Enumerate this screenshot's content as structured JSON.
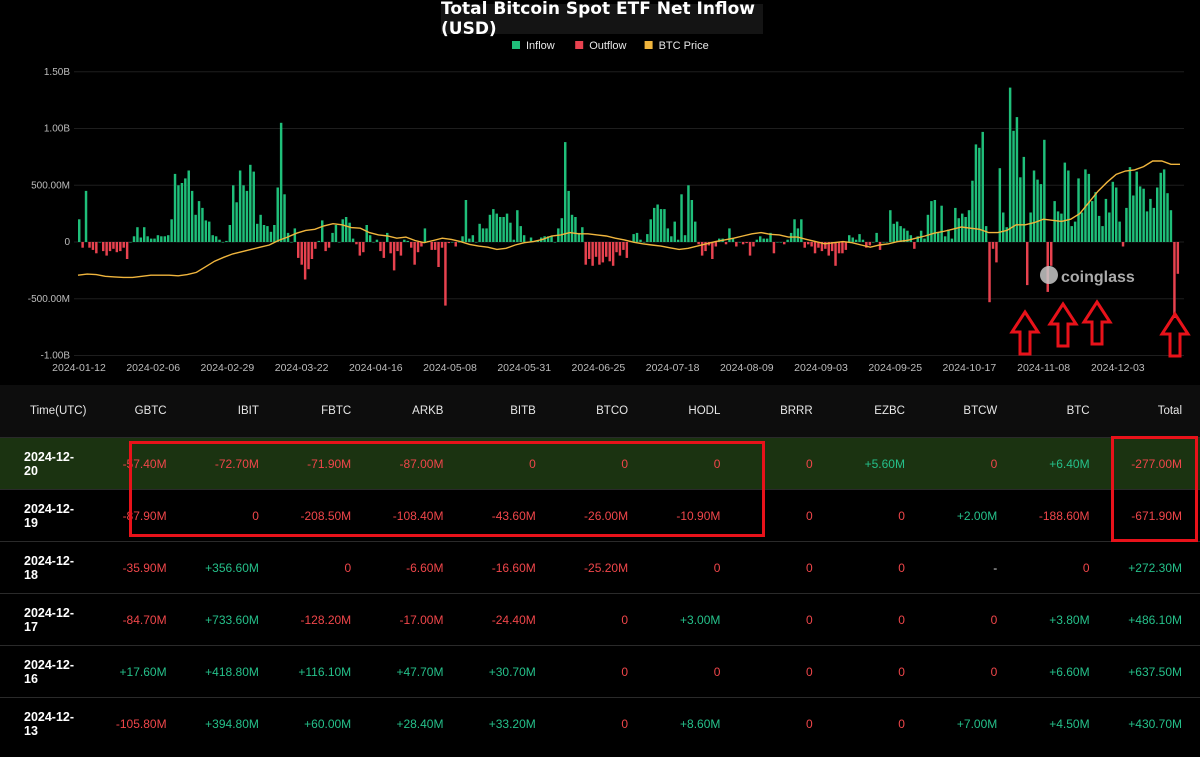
{
  "title": "Total Bitcoin Spot ETF Net Inflow (USD)",
  "watermark": "coinglass",
  "legend": [
    {
      "label": "Inflow",
      "color": "#1fbf7a"
    },
    {
      "label": "Outflow",
      "color": "#e8424f"
    },
    {
      "label": "BTC Price",
      "color": "#f0b53d"
    }
  ],
  "chart_data": {
    "type": "bar",
    "title": "Total Bitcoin Spot ETF Net Inflow (USD)",
    "y_ticks": [
      "1.50B",
      "1.00B",
      "500.00M",
      "0",
      "-500.00M",
      "-1.00B"
    ],
    "ylim": [
      -1.0,
      1.5
    ],
    "y_unit": "B",
    "x_ticks": [
      "2024-01-12",
      "2024-02-06",
      "2024-02-29",
      "2024-03-22",
      "2024-04-16",
      "2024-05-08",
      "2024-05-31",
      "2024-06-25",
      "2024-07-18",
      "2024-08-09",
      "2024-09-03",
      "2024-09-25",
      "2024-10-17",
      "2024-11-08",
      "2024-12-03"
    ],
    "grid": true,
    "legend_position": "top-center",
    "series": [
      {
        "name": "Inflow/Outflow",
        "values_B": [
          0.2,
          -0.05,
          0.45,
          -0.05,
          -0.07,
          -0.1,
          0.0,
          -0.08,
          -0.12,
          -0.08,
          -0.06,
          -0.09,
          -0.08,
          -0.05,
          -0.15,
          0.0,
          0.05,
          0.13,
          0.04,
          0.13,
          0.05,
          0.03,
          0.03,
          0.06,
          0.05,
          0.05,
          0.06,
          0.2,
          0.6,
          0.5,
          0.52,
          0.56,
          0.63,
          0.45,
          0.24,
          0.36,
          0.3,
          0.19,
          0.18,
          0.06,
          0.05,
          0.02,
          0.0,
          0.01,
          0.15,
          0.5,
          0.35,
          0.63,
          0.5,
          0.45,
          0.68,
          0.62,
          0.16,
          0.24,
          0.15,
          0.14,
          0.09,
          0.15,
          0.48,
          1.05,
          0.42,
          0.08,
          0.0,
          0.12,
          -0.14,
          -0.2,
          -0.33,
          -0.24,
          -0.15,
          -0.06,
          0.01,
          0.19,
          -0.08,
          -0.05,
          0.08,
          0.15,
          0.0,
          0.2,
          0.22,
          0.17,
          0.03,
          -0.02,
          -0.12,
          -0.09,
          0.15,
          0.06,
          0.0,
          0.02,
          -0.08,
          -0.14,
          0.08,
          -0.1,
          -0.25,
          -0.08,
          -0.12,
          0.02,
          0.01,
          -0.05,
          -0.2,
          -0.09,
          -0.04,
          0.12,
          0.01,
          -0.07,
          -0.07,
          -0.22,
          -0.05,
          -0.56,
          -0.01,
          0.0,
          -0.04,
          0.0,
          0.05,
          0.37,
          0.03,
          0.06,
          0.0,
          0.16,
          0.12,
          0.12,
          0.24,
          0.29,
          0.25,
          0.22,
          0.22,
          0.25,
          0.17,
          0.02,
          0.28,
          0.14,
          0.06,
          0.0,
          0.04,
          0.01,
          0.01,
          0.04,
          0.05,
          0.05,
          0.05,
          0.0,
          0.12,
          0.21,
          0.88,
          0.45,
          0.24,
          0.22,
          0.08,
          0.13,
          -0.2,
          -0.15,
          -0.21,
          -0.13,
          -0.2,
          -0.18,
          -0.13,
          -0.17,
          -0.21,
          -0.09,
          -0.12,
          -0.07,
          -0.14,
          0.01,
          0.07,
          0.08,
          0.02,
          0.0,
          0.07,
          0.2,
          0.3,
          0.33,
          0.29,
          0.29,
          0.12,
          0.05,
          0.18,
          0.02,
          0.42,
          0.06,
          0.5,
          0.37,
          0.18,
          -0.02,
          -0.12,
          -0.08,
          -0.03,
          -0.15,
          -0.04,
          0.03,
          0.03,
          -0.02,
          0.12,
          0.03,
          -0.04,
          0.0,
          -0.02,
          -0.01,
          -0.12,
          -0.04,
          0.02,
          0.05,
          0.03,
          0.03,
          0.08,
          -0.1,
          0.0,
          0.0,
          -0.02,
          0.02,
          0.08,
          0.2,
          0.12,
          0.2,
          -0.05,
          -0.02,
          -0.04,
          -0.1,
          -0.05,
          -0.08,
          -0.06,
          -0.12,
          -0.08,
          -0.21,
          -0.1,
          -0.1,
          -0.07,
          0.06,
          0.04,
          0.02,
          0.07,
          0.02,
          -0.05,
          -0.03,
          0.0,
          0.08,
          -0.07,
          0.0,
          0.0,
          0.28,
          0.16,
          0.18,
          0.14,
          0.12,
          0.1,
          0.06,
          -0.06,
          0.05,
          0.1,
          0.03,
          0.24,
          0.36,
          0.37,
          0.08,
          0.32,
          0.05,
          0.11,
          0.03,
          0.3,
          0.21,
          0.25,
          0.22,
          0.28,
          0.54,
          0.86,
          0.83,
          0.97,
          0.14,
          -0.53,
          -0.06,
          -0.18,
          0.65,
          0.26,
          0.13,
          1.36,
          0.98,
          1.1,
          0.57,
          0.75,
          -0.38,
          0.26,
          0.63,
          0.55,
          0.51,
          0.9,
          -0.44,
          -0.21,
          0.36,
          0.27,
          0.25,
          0.7,
          0.63,
          0.14,
          0.18,
          0.56,
          0.26,
          0.64,
          0.6,
          0.36,
          0.44,
          0.23,
          0.14,
          0.38,
          0.26,
          0.53,
          0.48,
          0.18,
          -0.04,
          0.3,
          0.66,
          0.41,
          0.62,
          0.49,
          0.47,
          0.27,
          0.38,
          0.3,
          0.48,
          0.61,
          0.64,
          0.43,
          0.28,
          -0.67,
          -0.28
        ]
      },
      {
        "name": "BTC Price",
        "values_rel": [
          0.3,
          0.32,
          0.31,
          0.28,
          0.27,
          0.26,
          0.26,
          0.28,
          0.3,
          0.3,
          0.3,
          0.29,
          0.31,
          0.35,
          0.45,
          0.55,
          0.62,
          0.68,
          0.72,
          0.76,
          0.8,
          0.84,
          0.92,
          0.98,
          1.05,
          1.1,
          1.12,
          1.18,
          1.22,
          1.2,
          1.15,
          1.14,
          1.06,
          1.02,
          1.0,
          0.96,
          0.98,
          0.92,
          0.88,
          0.92,
          0.96,
          0.94,
          0.9,
          0.85,
          0.82,
          0.8,
          0.76,
          0.78,
          0.84,
          0.88,
          0.9,
          0.94,
          1.0,
          1.02,
          1.06,
          1.04,
          1.04,
          1.02,
          1.0,
          0.96,
          0.93,
          0.89,
          0.86,
          0.84,
          0.82,
          0.79,
          0.76,
          0.78,
          0.82,
          0.86,
          0.9,
          0.93,
          0.96,
          1.0,
          1.04,
          1.06,
          1.03,
          1.02,
          0.98,
          0.98,
          0.94,
          0.9,
          0.86,
          0.88,
          0.9,
          0.88,
          0.84,
          0.8,
          0.84,
          0.86,
          0.9,
          0.92,
          0.96,
          1.0,
          1.05,
          1.08,
          1.12,
          1.16,
          1.14,
          1.12,
          1.06,
          1.06,
          1.1,
          1.2,
          1.2,
          1.24,
          1.3,
          1.28,
          1.26,
          1.3,
          1.4,
          1.6,
          1.8,
          1.96,
          2.1,
          2.16,
          2.18,
          2.24,
          2.34,
          2.34,
          2.28,
          2.28
        ]
      }
    ]
  },
  "table": {
    "columns": [
      "Time(UTC)",
      "GBTC",
      "IBIT",
      "FBTC",
      "ARKB",
      "BITB",
      "BTCO",
      "HODL",
      "BRRR",
      "EZBC",
      "BTCW",
      "BTC",
      "Total"
    ],
    "rows": [
      {
        "highlight": true,
        "cells": [
          "2024-12-20",
          "-57.40M",
          "-72.70M",
          "-71.90M",
          "-87.00M",
          "0",
          "0",
          "0",
          "0",
          "+5.60M",
          "0",
          "+6.40M",
          "-277.00M"
        ]
      },
      {
        "highlight": false,
        "cells": [
          "2024-12-19",
          "-87.90M",
          "0",
          "-208.50M",
          "-108.40M",
          "-43.60M",
          "-26.00M",
          "-10.90M",
          "0",
          "0",
          "+2.00M",
          "-188.60M",
          "-671.90M"
        ]
      },
      {
        "highlight": false,
        "cells": [
          "2024-12-18",
          "-35.90M",
          "+356.60M",
          "0",
          "-6.60M",
          "-16.60M",
          "-25.20M",
          "0",
          "0",
          "0",
          "-",
          "0",
          "+272.30M"
        ]
      },
      {
        "highlight": false,
        "cells": [
          "2024-12-17",
          "-84.70M",
          "+733.60M",
          "-128.20M",
          "-17.00M",
          "-24.40M",
          "0",
          "+3.00M",
          "0",
          "0",
          "0",
          "+3.80M",
          "+486.10M"
        ]
      },
      {
        "highlight": false,
        "cells": [
          "2024-12-16",
          "+17.60M",
          "+418.80M",
          "+116.10M",
          "+47.70M",
          "+30.70M",
          "0",
          "0",
          "0",
          "0",
          "0",
          "+6.60M",
          "+637.50M"
        ]
      },
      {
        "highlight": false,
        "cells": [
          "2024-12-13",
          "-105.80M",
          "+394.80M",
          "+60.00M",
          "+28.40M",
          "+33.20M",
          "0",
          "+8.60M",
          "0",
          "0",
          "+7.00M",
          "+4.50M",
          "+430.70M"
        ]
      }
    ]
  }
}
